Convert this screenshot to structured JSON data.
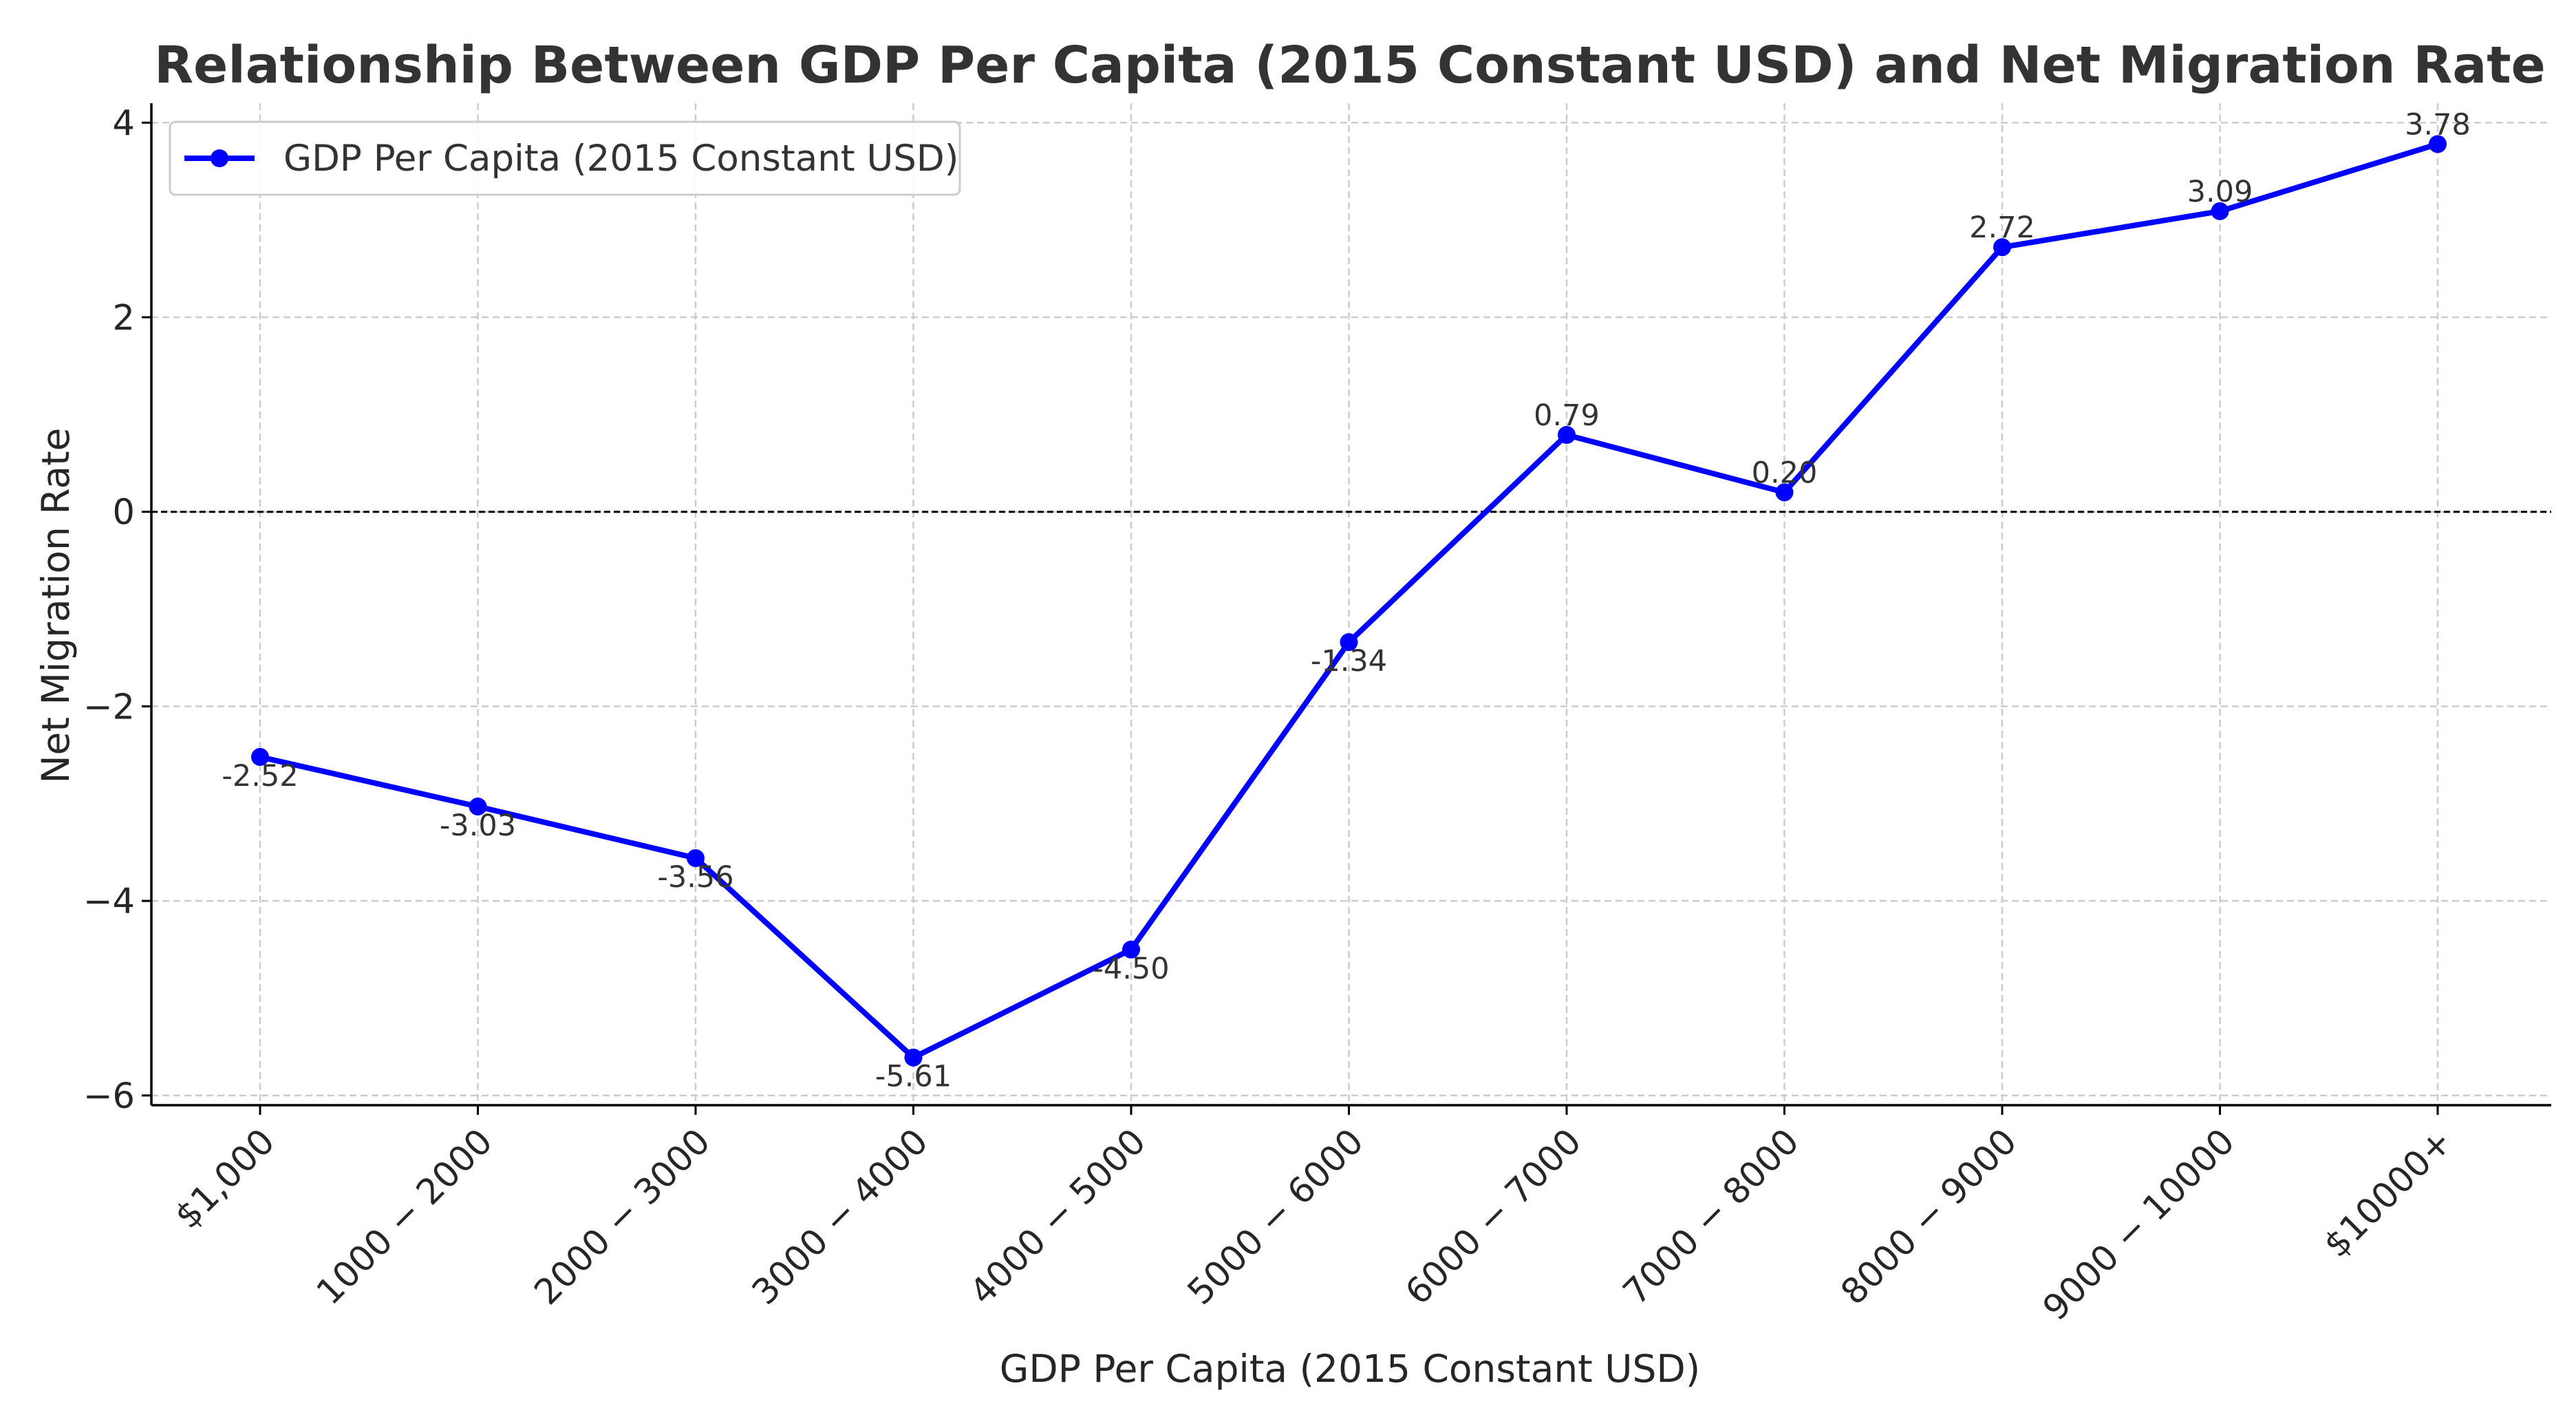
{
  "chart_data": {
    "type": "line",
    "title": "Relationship Between GDP Per Capita (2015 Constant USD) and Net Migration Rate",
    "xlabel": "GDP Per Capita (2015 Constant USD)",
    "ylabel": "Net Migration Rate",
    "categories": [
      "$1,000",
      "1000 − 2000",
      "2000 − 3000",
      "3000 − 4000",
      "4000 − 5000",
      "5000 − 6000",
      "6000 − 7000",
      "7000 − 8000",
      "8000 − 9000",
      "9000 − 10000",
      "$10000+"
    ],
    "series": [
      {
        "name": "GDP Per Capita (2015 Constant USD)",
        "values": [
          -2.52,
          -3.03,
          -3.56,
          -5.61,
          -4.5,
          -1.34,
          0.79,
          0.2,
          2.72,
          3.09,
          3.78
        ],
        "labels": [
          "-2.52",
          "-3.03",
          "-3.56",
          "-5.61",
          "-4.50",
          "-1.34",
          "0.79",
          "0.20",
          "2.72",
          "3.09",
          "3.78"
        ],
        "color": "#0000ff"
      }
    ],
    "yticks": [
      -6,
      -4,
      -2,
      0,
      2,
      4
    ],
    "ytick_labels": [
      "−6",
      "−4",
      "−2",
      "0",
      "2",
      "4"
    ],
    "ylim": [
      -6.1,
      4.2
    ],
    "reference_line_y": 0,
    "grid": true,
    "legend_position": "top-left"
  }
}
